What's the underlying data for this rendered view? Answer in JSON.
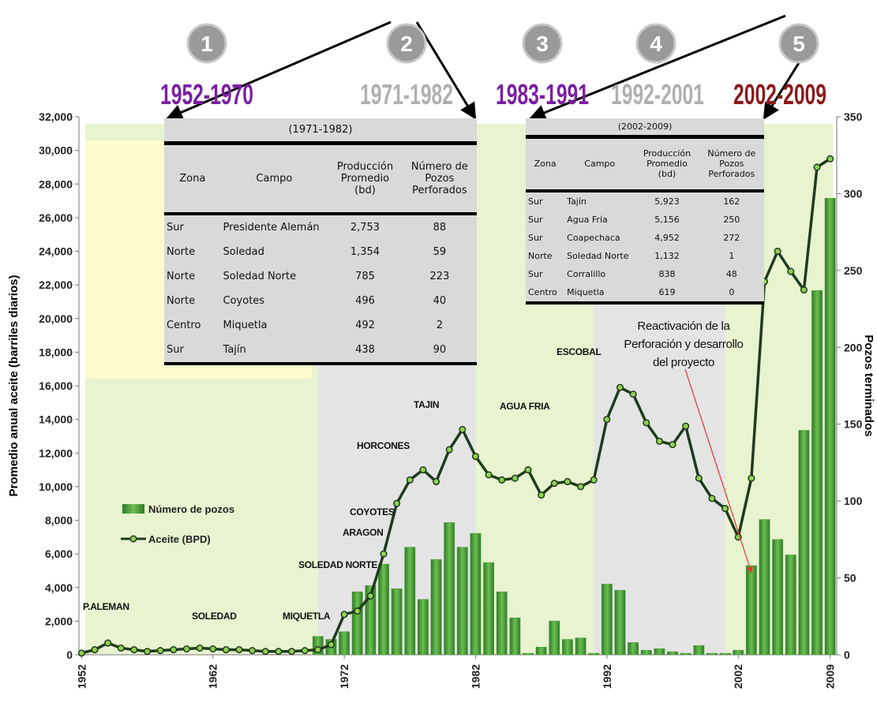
{
  "chart_data": {
    "type": "combo",
    "y_label": "Promedio anual aceite (barriles diarios)",
    "y2_label": "Pozos terminados",
    "x": [
      1952,
      1953,
      1954,
      1955,
      1956,
      1957,
      1958,
      1959,
      1960,
      1961,
      1962,
      1963,
      1964,
      1965,
      1966,
      1967,
      1968,
      1969,
      1970,
      1971,
      1972,
      1973,
      1974,
      1975,
      1976,
      1977,
      1978,
      1979,
      1980,
      1981,
      1982,
      1983,
      1984,
      1985,
      1986,
      1987,
      1988,
      1989,
      1990,
      1991,
      1992,
      1993,
      1994,
      1995,
      1996,
      1997,
      1998,
      1999,
      2000,
      2001,
      2002,
      2003,
      2004,
      2005,
      2006,
      2007,
      2008,
      2009
    ],
    "xlim": [
      1951.8,
      2009.5
    ],
    "xticks": [
      1952,
      1962,
      1972,
      1982,
      1992,
      2002,
      2009
    ],
    "ylim": [
      0,
      32000
    ],
    "yticks": [
      0,
      {
        "value": 2000,
        "label": "2,000"
      },
      {
        "value": 4000,
        "label": "4,000"
      },
      {
        "value": 6000,
        "label": "6,000"
      },
      {
        "value": 8000,
        "label": "8,000"
      },
      {
        "value": 10000,
        "label": "10,000"
      },
      {
        "value": 12000,
        "label": "12,000"
      },
      {
        "value": 14000,
        "label": "14,000"
      },
      {
        "value": 16000,
        "label": "16,000"
      },
      {
        "value": 18000,
        "label": "18,000"
      },
      {
        "value": 20000,
        "label": "20,000"
      },
      {
        "value": 22000,
        "label": "22,000"
      },
      {
        "value": 24000,
        "label": "24,000"
      },
      {
        "value": 26000,
        "label": "26,000"
      },
      {
        "value": 28000,
        "label": "28,000"
      },
      {
        "value": 30000,
        "label": "30,000"
      },
      {
        "value": 32000,
        "label": "32,000"
      }
    ],
    "y2lim": [
      0,
      350
    ],
    "y2ticks": [
      0,
      50,
      100,
      150,
      200,
      250,
      300,
      350
    ],
    "series": [
      {
        "name": "Número de pozos",
        "type": "bar",
        "axis": "y2",
        "color": "#4f9b3c",
        "values": [
          0,
          0,
          0,
          0,
          0,
          0,
          0,
          0,
          0,
          0,
          0,
          0,
          0,
          0,
          0,
          0,
          0,
          0,
          12,
          10,
          15,
          41,
          45,
          59,
          43,
          70,
          36,
          62,
          86,
          70,
          79,
          60,
          41,
          24,
          1,
          5,
          22,
          10,
          11,
          1,
          46,
          42,
          8,
          3,
          4,
          2,
          1,
          6,
          1,
          1,
          3,
          58,
          88,
          75,
          65,
          146,
          237,
          297
        ]
      },
      {
        "name": "Aceite (BPD)",
        "type": "line",
        "axis": "y",
        "color": "#1e3b1e",
        "marker_color": "#8fd14f",
        "values": [
          100,
          300,
          700,
          400,
          300,
          200,
          250,
          300,
          350,
          400,
          350,
          300,
          300,
          250,
          200,
          200,
          200,
          250,
          300,
          600,
          2400,
          2600,
          3500,
          6000,
          9000,
          10400,
          11000,
          10300,
          12200,
          13400,
          11800,
          10700,
          10400,
          10500,
          11000,
          9500,
          10200,
          10300,
          10000,
          10400,
          14000,
          15900,
          15500,
          13800,
          12700,
          12500,
          13600,
          10500,
          9300,
          8700,
          7000,
          10500,
          22200,
          24000,
          22800,
          21700,
          29000,
          29500
        ]
      }
    ],
    "periods": [
      {
        "number": "1",
        "label": "1952-1970",
        "color": "#7b1fa2",
        "background": "#e8f3d0"
      },
      {
        "number": "2",
        "label": "1971-1982",
        "color": "#b0b0b0",
        "background": "#e4e4e4"
      },
      {
        "number": "3",
        "label": "1983-1991",
        "color": "#7b1fa2",
        "background": "#e8f3d0"
      },
      {
        "number": "4",
        "label": "1992-2001",
        "color": "#b0b0b0",
        "background": "#e4e4e4"
      },
      {
        "number": "5",
        "label": "2002-2009",
        "color": "#8b1a1a",
        "background": "#e8f3d0"
      }
    ],
    "annotations": [
      "P.ALEMAN",
      "SOLEDAD",
      "MIQUETLA",
      "SOLEDAD NORTE",
      "ARAGON",
      "COYOTES",
      "HORCONES",
      "TAJIN",
      "AGUA FRIA",
      "ESCOBAL",
      "Reactivación de la Perforación y desarrollo del proyecto"
    ],
    "grid": false,
    "legend": "left"
  },
  "tables": [
    {
      "title": "(1971-1982)",
      "columns": [
        "Zona",
        "Campo",
        "Producción Promedio (bd)",
        "Número de Pozos Perforados"
      ],
      "rows": [
        [
          "Sur",
          "Presidente Alemán",
          "2,753",
          "88"
        ],
        [
          "Norte",
          "Soledad",
          "1,354",
          "59"
        ],
        [
          "Norte",
          "Soledad Norte",
          "785",
          "223"
        ],
        [
          "Norte",
          "Coyotes",
          "496",
          "40"
        ],
        [
          "Centro",
          "Miquetla",
          "492",
          "2"
        ],
        [
          "Sur",
          "Tajín",
          "438",
          "90"
        ]
      ]
    },
    {
      "title": "(2002-2009)",
      "columns": [
        "Zona",
        "Campo",
        "Producción Promedio (bd)",
        "Número de Pozos Perforados"
      ],
      "rows": [
        [
          "Sur",
          "Tajín",
          "5,923",
          "162"
        ],
        [
          "Sur",
          "Agua Fría",
          "5,156",
          "250"
        ],
        [
          "Sur",
          "Coapechaca",
          "4,952",
          "272"
        ],
        [
          "Norte",
          "Soledad Norte",
          "1,132",
          "1"
        ],
        [
          "Sur",
          "Corralillo",
          "838",
          "48"
        ],
        [
          "Centro",
          "Miquetla",
          "619",
          "0"
        ]
      ]
    }
  ]
}
